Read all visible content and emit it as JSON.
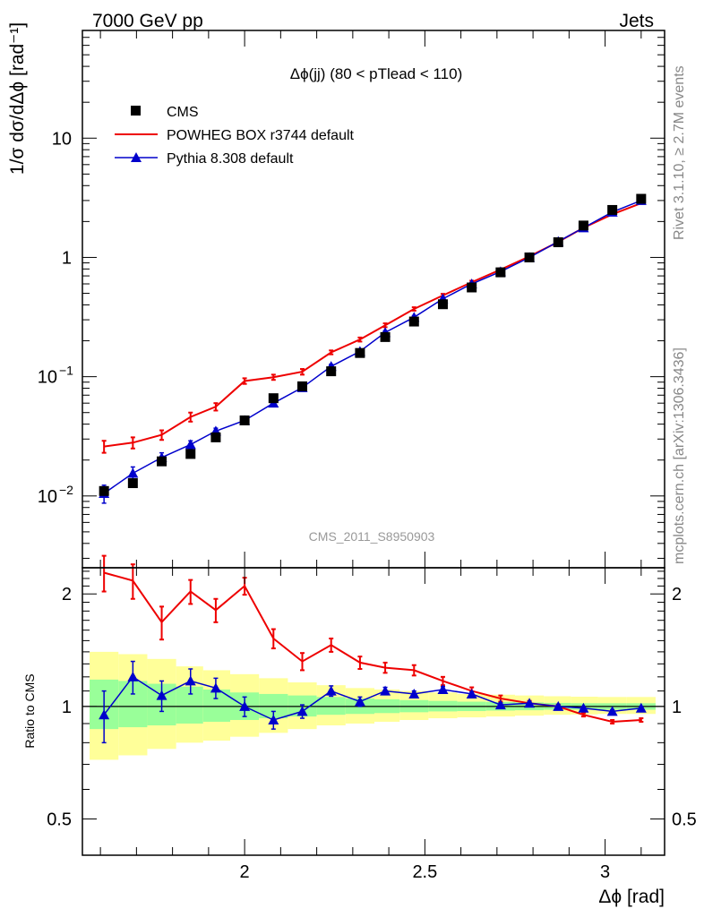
{
  "header": {
    "left": "7000 GeV pp",
    "right": "Jets"
  },
  "side_labels": {
    "rivet": "Rivet 3.1.10, ≥ 2.7M events",
    "mcplots": "mcplots.cern.ch [arXiv:1306.3436]"
  },
  "watermark": "CMS_2011_S8950903",
  "colors": {
    "cms": "#000000",
    "powheg": "#ee0000",
    "pythia": "#0000cc",
    "band_outer": "#ffff99",
    "band_inner": "#99ff99"
  },
  "chart_data": [
    {
      "type": "scatter",
      "title": "Δϕ(jj) (80 < pTlead < 110)",
      "ylabel": "1/σ dσ/dΔϕ [rad⁻¹]",
      "yscale": "log",
      "ylim": [
        0.0025,
        80
      ],
      "xlim": [
        1.55,
        3.165
      ],
      "y_ticks": [
        {
          "value": 0.01,
          "label": "10",
          "exp": "−2"
        },
        {
          "value": 0.1,
          "label": "10",
          "exp": "−1"
        },
        {
          "value": 1,
          "label": "1",
          "exp": ""
        },
        {
          "value": 10,
          "label": "10",
          "exp": ""
        }
      ],
      "legend": {
        "position": "top-left"
      },
      "x": [
        1.61,
        1.69,
        1.77,
        1.85,
        1.92,
        2.0,
        2.08,
        2.16,
        2.24,
        2.32,
        2.39,
        2.47,
        2.55,
        2.63,
        2.71,
        2.79,
        2.87,
        2.94,
        3.02,
        3.1
      ],
      "series": [
        {
          "name": "CMS",
          "style": "markers-square",
          "values": [
            0.011,
            0.0128,
            0.0195,
            0.0225,
            0.031,
            0.043,
            0.066,
            0.083,
            0.111,
            0.158,
            0.215,
            0.29,
            0.405,
            0.56,
            0.75,
            1.0,
            1.34,
            1.85,
            2.5,
            3.1
          ]
        },
        {
          "name": "POWHEG BOX r3744 default",
          "style": "line-errorbar",
          "values": [
            0.026,
            0.028,
            0.0325,
            0.046,
            0.056,
            0.092,
            0.099,
            0.11,
            0.16,
            0.205,
            0.27,
            0.37,
            0.48,
            0.62,
            0.79,
            1.02,
            1.35,
            1.77,
            2.3,
            2.85
          ],
          "errors": [
            0.003,
            0.003,
            0.003,
            0.004,
            0.004,
            0.005,
            0.005,
            0.006,
            0.006,
            0.008,
            0.01,
            0.012,
            0.015,
            0.018,
            0.02,
            0.02,
            0.025,
            0.03,
            0.035,
            0.04
          ]
        },
        {
          "name": "Pythia 8.308 default",
          "style": "line-triangle",
          "values": [
            0.0105,
            0.0155,
            0.021,
            0.027,
            0.035,
            0.043,
            0.06,
            0.081,
            0.122,
            0.163,
            0.235,
            0.315,
            0.45,
            0.6,
            0.76,
            1.0,
            1.36,
            1.77,
            2.4,
            3.0
          ],
          "errors": [
            0.0018,
            0.002,
            0.002,
            0.002,
            0.002,
            0.002,
            0.003,
            0.004,
            0.005,
            0.006,
            0.008,
            0.01,
            0.012,
            0.015,
            0.018,
            0.02,
            0.025,
            0.03,
            0.035,
            0.04
          ]
        }
      ]
    },
    {
      "type": "line",
      "ylabel": "Ratio to CMS",
      "xlabel": "Δϕ [rad]",
      "yscale": "log",
      "ylim": [
        0.4,
        2.35
      ],
      "xlim": [
        1.55,
        3.165
      ],
      "y_ticks": [
        {
          "value": 0.5,
          "label": "0.5"
        },
        {
          "value": 1,
          "label": "1"
        },
        {
          "value": 2,
          "label": "2"
        }
      ],
      "x_ticks": [
        {
          "value": 2,
          "label": "2"
        },
        {
          "value": 2.5,
          "label": "2.5"
        },
        {
          "value": 3,
          "label": "3"
        }
      ],
      "bins": [
        [
          1.57,
          1.65
        ],
        [
          1.65,
          1.73
        ],
        [
          1.73,
          1.81
        ],
        [
          1.81,
          1.885
        ],
        [
          1.885,
          1.96
        ],
        [
          1.96,
          2.04
        ],
        [
          2.04,
          2.12
        ],
        [
          2.12,
          2.2
        ],
        [
          2.2,
          2.28
        ],
        [
          2.28,
          2.36
        ],
        [
          2.36,
          2.43
        ],
        [
          2.43,
          2.51
        ],
        [
          2.51,
          2.59
        ],
        [
          2.59,
          2.67
        ],
        [
          2.67,
          2.75
        ],
        [
          2.75,
          2.83
        ],
        [
          2.83,
          2.905
        ],
        [
          2.905,
          2.98
        ],
        [
          2.98,
          3.06
        ],
        [
          3.06,
          3.14
        ]
      ],
      "band_outer": {
        "lower": [
          0.72,
          0.74,
          0.77,
          0.8,
          0.81,
          0.83,
          0.85,
          0.87,
          0.89,
          0.9,
          0.91,
          0.92,
          0.93,
          0.935,
          0.94,
          0.945,
          0.95,
          0.952,
          0.955,
          0.955
        ],
        "upper": [
          1.4,
          1.38,
          1.34,
          1.28,
          1.25,
          1.22,
          1.19,
          1.16,
          1.14,
          1.12,
          1.11,
          1.1,
          1.09,
          1.08,
          1.075,
          1.07,
          1.065,
          1.062,
          1.06,
          1.06
        ]
      },
      "band_inner": {
        "lower": [
          0.87,
          0.88,
          0.89,
          0.9,
          0.91,
          0.92,
          0.93,
          0.94,
          0.95,
          0.955,
          0.96,
          0.965,
          0.97,
          0.972,
          0.975,
          0.977,
          0.98,
          0.98,
          0.98,
          0.98
        ],
        "upper": [
          1.18,
          1.17,
          1.15,
          1.13,
          1.11,
          1.09,
          1.08,
          1.07,
          1.06,
          1.05,
          1.045,
          1.04,
          1.035,
          1.03,
          1.028,
          1.025,
          1.022,
          1.02,
          1.02,
          1.02
        ]
      },
      "x": [
        1.61,
        1.69,
        1.77,
        1.85,
        1.92,
        2.0,
        2.08,
        2.16,
        2.24,
        2.32,
        2.39,
        2.47,
        2.55,
        2.63,
        2.71,
        2.79,
        2.87,
        2.94,
        3.02,
        3.1
      ],
      "series": [
        {
          "name": "POWHEG BOX r3744 default",
          "values": [
            2.28,
            2.17,
            1.68,
            2.03,
            1.81,
            2.1,
            1.52,
            1.32,
            1.46,
            1.31,
            1.27,
            1.25,
            1.17,
            1.1,
            1.05,
            1.02,
            1.0,
            0.95,
            0.91,
            0.92
          ],
          "errors": [
            0.25,
            0.23,
            0.17,
            0.15,
            0.13,
            0.11,
            0.09,
            0.07,
            0.06,
            0.05,
            0.04,
            0.04,
            0.03,
            0.025,
            0.02,
            0.015,
            0.012,
            0.01,
            0.01,
            0.01
          ]
        },
        {
          "name": "Pythia 8.308 default",
          "values": [
            0.95,
            1.2,
            1.07,
            1.17,
            1.12,
            1.0,
            0.92,
            0.97,
            1.1,
            1.03,
            1.1,
            1.08,
            1.11,
            1.08,
            1.01,
            1.02,
            1.0,
            0.99,
            0.97,
            0.99
          ],
          "errors": [
            0.15,
            0.12,
            0.1,
            0.09,
            0.07,
            0.06,
            0.05,
            0.04,
            0.035,
            0.03,
            0.025,
            0.02,
            0.02,
            0.015,
            0.012,
            0.01,
            0.01,
            0.01,
            0.01,
            0.01
          ]
        }
      ]
    }
  ]
}
